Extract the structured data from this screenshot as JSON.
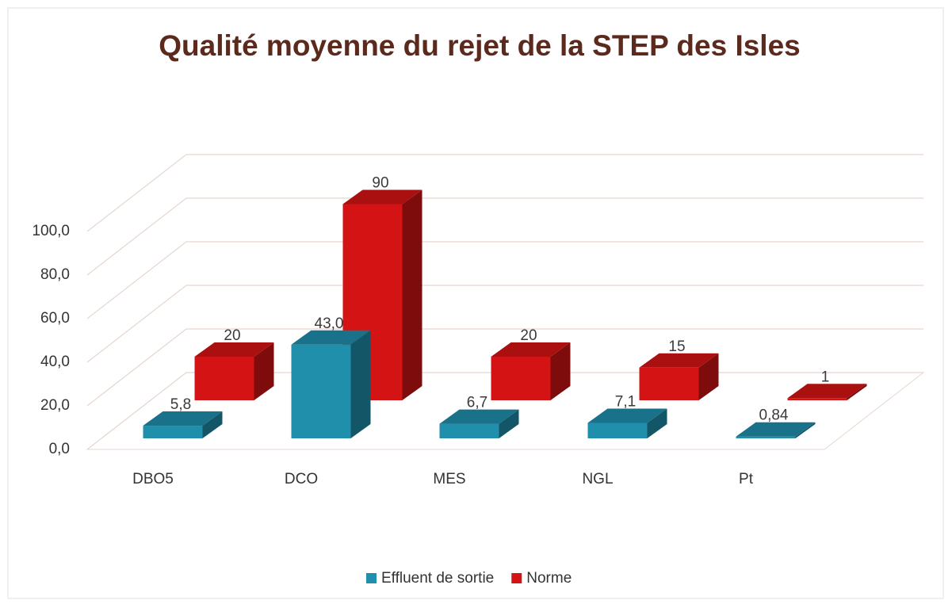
{
  "chart_data": {
    "type": "bar3d",
    "title": "Qualité moyenne du rejet de la STEP des Isles",
    "categories": [
      "DBO5",
      "DCO",
      "MES",
      "NGL",
      "Pt"
    ],
    "series": [
      {
        "name": "Effluent de sortie",
        "color": "#1f8fab",
        "values": [
          5.8,
          43.0,
          6.7,
          7.1,
          0.84
        ],
        "value_labels": [
          "5,8",
          "43,0",
          "6,7",
          "7,1",
          "0,84"
        ]
      },
      {
        "name": "Norme",
        "color": "#d41414",
        "values": [
          20,
          90,
          20,
          15,
          1
        ]
      }
    ],
    "ylim": [
      0,
      100
    ],
    "yticks": [
      {
        "value": 0,
        "label": "0,0"
      },
      {
        "value": 20,
        "label": "20,0"
      },
      {
        "value": 40,
        "label": "40,0"
      },
      {
        "value": 60,
        "label": "60,0"
      },
      {
        "value": 80,
        "label": "80,0"
      },
      {
        "value": 100,
        "label": "100,0"
      }
    ],
    "grid": true
  }
}
